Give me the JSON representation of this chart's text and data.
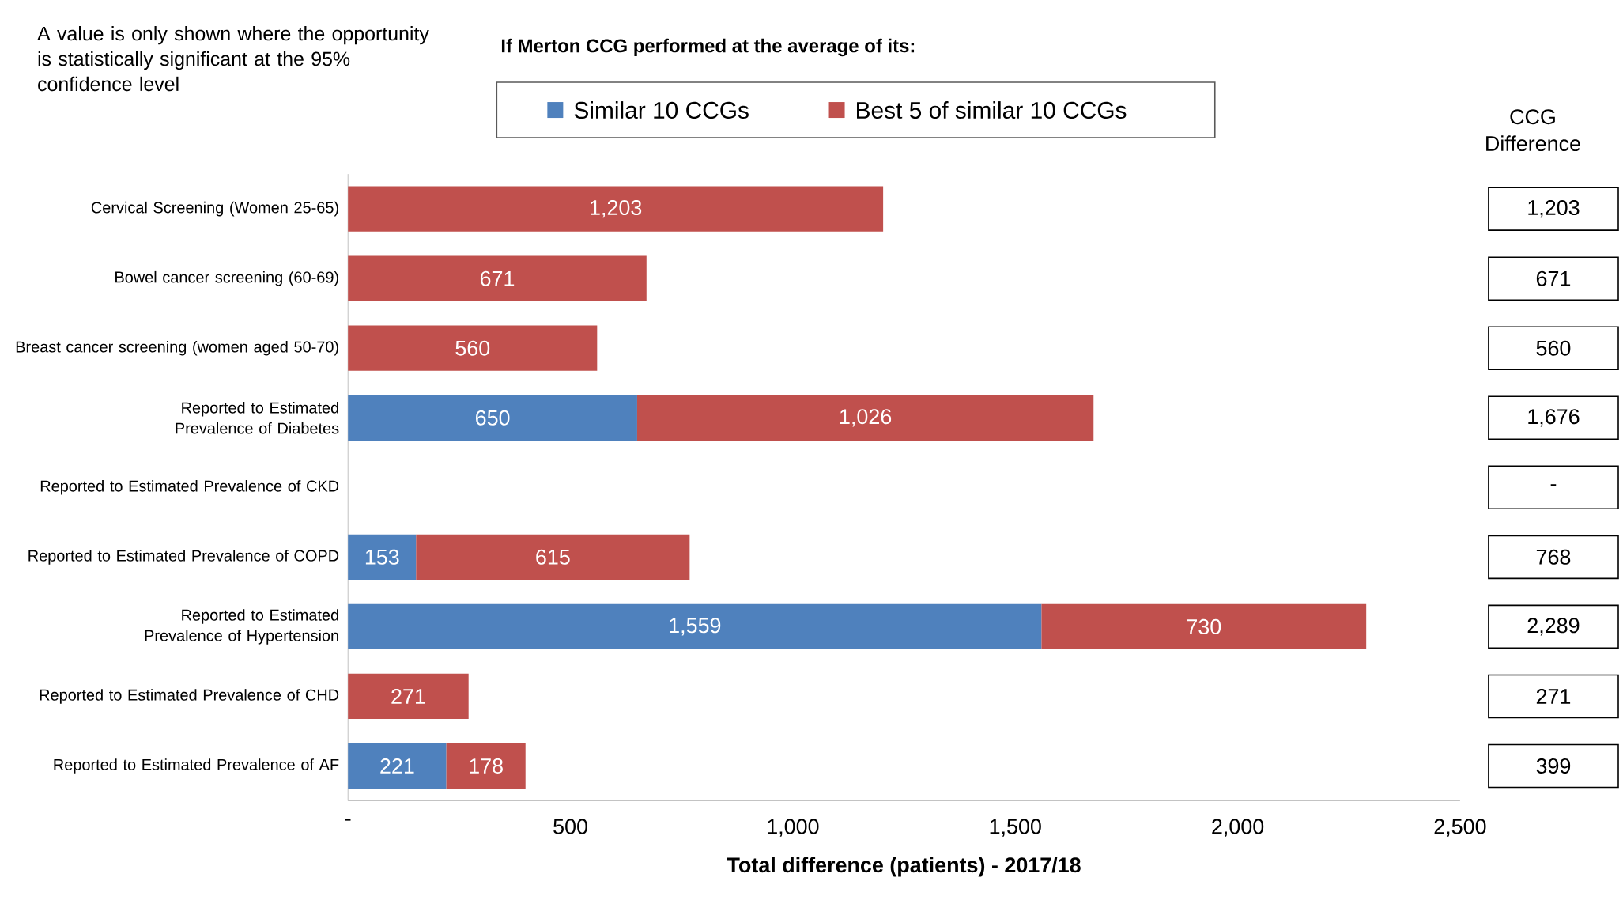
{
  "chart_data": {
    "type": "bar",
    "orientation": "horizontal",
    "stacked": true,
    "title": "If Merton CCG performed at the average of its:",
    "annotations": [
      "A value is only shown where the opportunity is statistically significant at the 95% confidence level",
      "CCG Difference",
      "1,203",
      "671",
      "560",
      "1,676",
      "-",
      "768",
      "2,289",
      "271",
      "399"
    ],
    "xlabel": "Total difference (patients) - 2017/18",
    "categories": [
      "Cervical Screening (Women 25-65)",
      "Bowel cancer screening (60-69)",
      "Breast cancer screening (women aged 50-70)",
      "Reported to Estimated Prevalence of Diabetes",
      "Reported to Estimated Prevalence of CKD",
      "Reported to Estimated Prevalence of COPD",
      "Reported to Estimated Prevalence of Hypertension",
      "Reported to Estimated Prevalence of CHD",
      "Reported to Estimated Prevalence of AF"
    ],
    "series": [
      {
        "name": "Similar 10 CCGs",
        "color": "#4f81bd",
        "values": [
          null,
          null,
          null,
          650,
          null,
          153,
          1559,
          null,
          221
        ],
        "value_labels": [
          null,
          null,
          null,
          "650",
          null,
          "153",
          "1,559",
          null,
          "221"
        ]
      },
      {
        "name": "Best 5 of similar 10 CCGs",
        "color": "#c0504d",
        "values": [
          1203,
          671,
          560,
          1026,
          null,
          615,
          730,
          271,
          178
        ],
        "value_labels": [
          "1,203",
          "671",
          "560",
          "1,026",
          null,
          "615",
          "730",
          "271",
          "178"
        ]
      }
    ],
    "xlim": [
      0,
      2500
    ],
    "xticks": [
      {
        "value": 0,
        "label": "-"
      },
      500,
      {
        "value": 1000,
        "label": "1,000"
      },
      {
        "value": 1500,
        "label": "1,500"
      },
      {
        "value": 2000,
        "label": "2,000"
      },
      {
        "value": 2500,
        "label": "2,500"
      }
    ],
    "grid": false,
    "legend": "top"
  }
}
